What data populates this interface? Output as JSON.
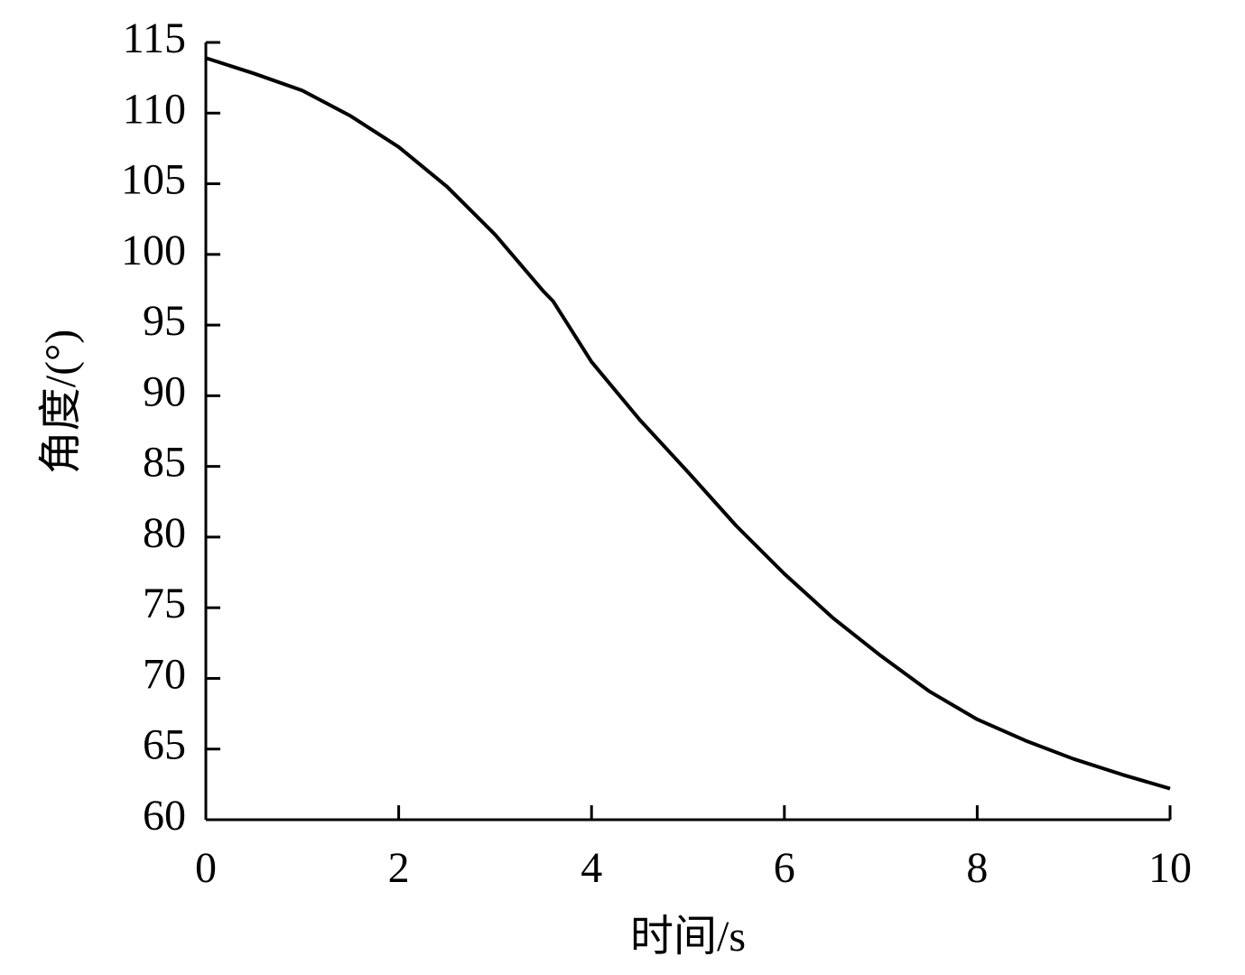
{
  "chart_data": {
    "type": "line",
    "xlabel": "时间/s",
    "ylabel": "角度/(°)",
    "x": [
      0,
      0.5,
      1,
      1.5,
      2,
      2.5,
      3,
      3.5,
      3.6,
      4,
      4.5,
      5,
      5.5,
      6,
      6.5,
      7,
      7.5,
      8,
      8.5,
      9,
      9.5,
      10
    ],
    "values": [
      113.9,
      112.8,
      111.6,
      109.8,
      107.6,
      104.8,
      101.4,
      97.4,
      96.7,
      92.4,
      88.3,
      84.6,
      80.8,
      77.4,
      74.3,
      71.6,
      69.1,
      67.1,
      65.6,
      64.3,
      63.2,
      62.2
    ],
    "color": "#000000",
    "xlim": [
      0,
      10
    ],
    "xticks": [
      0,
      2,
      4,
      6,
      8,
      10
    ],
    "ylim": [
      60,
      115
    ],
    "yticks": [
      60,
      65,
      70,
      75,
      80,
      85,
      90,
      95,
      100,
      105,
      110,
      115
    ]
  }
}
